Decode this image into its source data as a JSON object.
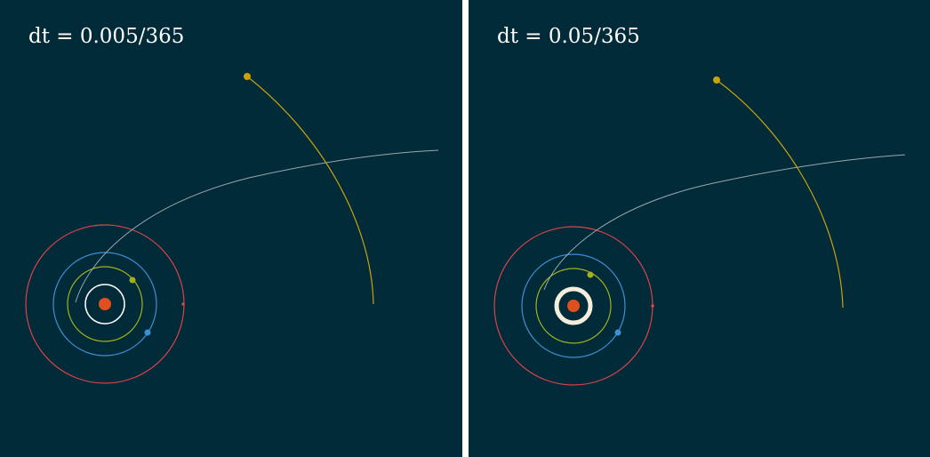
{
  "panels": [
    {
      "label": "dt = 0.005/365"
    },
    {
      "label": "dt = 0.05/365"
    }
  ],
  "colors": {
    "background": "#012b38",
    "divider": "#ffffff",
    "sun": "#e0501c",
    "inner_orbit": "#ffffff",
    "inner_orbit_thick": "#f3eedc",
    "orbit_green": "#a3b21c",
    "orbit_blue": "#3d8fd6",
    "orbit_red": "#d9434a",
    "comet_gray": "#9aa8ae",
    "comet_gold": "#c9a20c"
  }
}
